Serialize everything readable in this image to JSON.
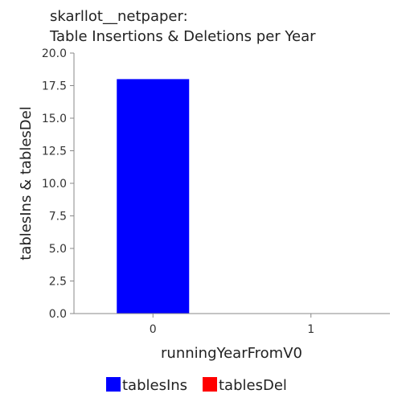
{
  "chart_data": {
    "type": "bar",
    "title_lines": [
      "skarllot__netpaper:",
      "Table Insertions & Deletions per Year"
    ],
    "xlabel": "runningYearFromV0",
    "ylabel": "tablesIns & tablesDel",
    "categories": [
      "0",
      "1"
    ],
    "series": [
      {
        "name": "tablesIns",
        "values": [
          18,
          0
        ],
        "color": "#0000ff"
      },
      {
        "name": "tablesDel",
        "values": [
          0,
          0
        ],
        "color": "#ff0000"
      }
    ],
    "ylim": [
      0,
      20
    ],
    "yticks": [
      "0.0",
      "2.5",
      "5.0",
      "7.5",
      "10.0",
      "12.5",
      "15.0",
      "17.5",
      "20.0"
    ],
    "grid": false,
    "legend_position": "bottom"
  }
}
